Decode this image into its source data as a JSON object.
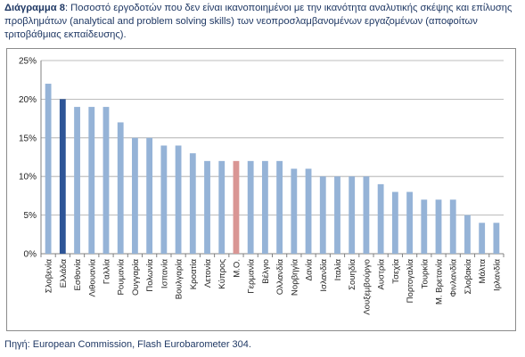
{
  "caption": {
    "label": "Διάγραμμα 8",
    "text": ": Ποσοστό εργοδοτών που δεν είναι ικανοποιημένοι με την ικανότητα αναλυτικής σκέψης και επίλυσης προβλημάτων (analytical and problem solving skills) των νεοπροσλαμβανομένων εργαζομένων (αποφοίτων τριτοβάθμιας εκπαίδευσης)."
  },
  "source": "Πηγή: European Commission, Flash Eurobarometer 304.",
  "chart_data": {
    "type": "bar",
    "categories": [
      "Σλοβενία",
      "Ελλάδα",
      "Εσθονία",
      "Λιθουανία",
      "Γαλλία",
      "Ρουμανία",
      "Ουγγαρία",
      "Πολωνία",
      "Ισπανία",
      "Βουλγαρία",
      "Κροατία",
      "Λετονία",
      "Κύπρος",
      "Μ.Ο.",
      "Γερμανία",
      "Βέλγιο",
      "Ολλανδία",
      "Νορβηγία",
      "Δανία",
      "Ισλανδία",
      "Ιταλία",
      "Σουηδία",
      "Λουξεμβούργο",
      "Αυστρία",
      "Τσεχία",
      "Πορτογαλία",
      "Τουρκία",
      "Μ. Βρετανία",
      "Φινλανδία",
      "Σλοβακία",
      "Μάλτα",
      "Ιρλανδία"
    ],
    "values": [
      22,
      20,
      19,
      19,
      19,
      17,
      15,
      15,
      14,
      14,
      13,
      12,
      12,
      12,
      12,
      12,
      12,
      11,
      11,
      10,
      10,
      10,
      10,
      9,
      8,
      8,
      7,
      7,
      7,
      5,
      4,
      4
    ],
    "highlight": {
      "Ελλάδα": "#2e5597",
      "Μ.Ο.": "#d99694"
    },
    "bar_color": "#95b3d7",
    "ylim": [
      0,
      25
    ],
    "yticks": [
      0,
      5,
      10,
      15,
      20,
      25
    ],
    "ytick_labels": [
      "0%",
      "5%",
      "10%",
      "15%",
      "20%",
      "25%"
    ],
    "grid": true
  }
}
